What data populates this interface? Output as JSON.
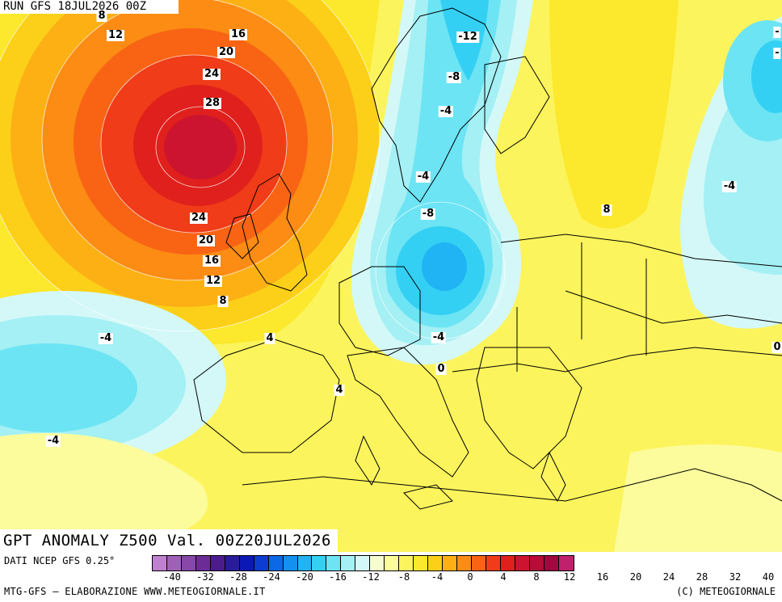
{
  "header": {
    "run_label": "RUN GFS 18JUL2026 00Z"
  },
  "title": "GPT ANOMALY Z500 Val. 00Z20JUL2026",
  "footer": {
    "data_source": "DATI NCEP GFS 0.25°",
    "credit_left": "MTG-GFS – ELABORAZIONE WWW.METEOGIORNALE.IT",
    "credit_right": "(C) METEOGIORNALE"
  },
  "legend": {
    "colors": [
      "#c080d0",
      "#a060b8",
      "#8848a8",
      "#6c2c98",
      "#4c1c8c",
      "#281c9c",
      "#0c18b4",
      "#0c3cd0",
      "#0c68e4",
      "#1490f0",
      "#20b4f4",
      "#34d0f4",
      "#6ce4f4",
      "#a4f0f4",
      "#d4f8f8",
      "#f4fcd0",
      "#fcfc9c",
      "#fcf45c",
      "#fce82c",
      "#fcd018",
      "#fcb014",
      "#fc8c14",
      "#f86414",
      "#f03c18",
      "#e0201c",
      "#cc1430",
      "#b80c38",
      "#a00840",
      "#c0206c"
    ],
    "ticks": [
      "-40",
      "-32",
      "-28",
      "-24",
      "-20",
      "-16",
      "-12",
      "-8",
      "-4",
      "0",
      "4",
      "8",
      "12",
      "16",
      "20",
      "24",
      "28",
      "32",
      "40"
    ]
  },
  "contour_labels": [
    "8",
    "12",
    "16",
    "20",
    "24",
    "28",
    "24",
    "20",
    "16",
    "12",
    "8",
    "4",
    "-4",
    "-4",
    "4",
    "-12",
    "-8",
    "-4",
    "-4",
    "-8",
    "-4",
    "0",
    "-4",
    "8",
    "-4",
    "-",
    "-",
    "0"
  ]
}
